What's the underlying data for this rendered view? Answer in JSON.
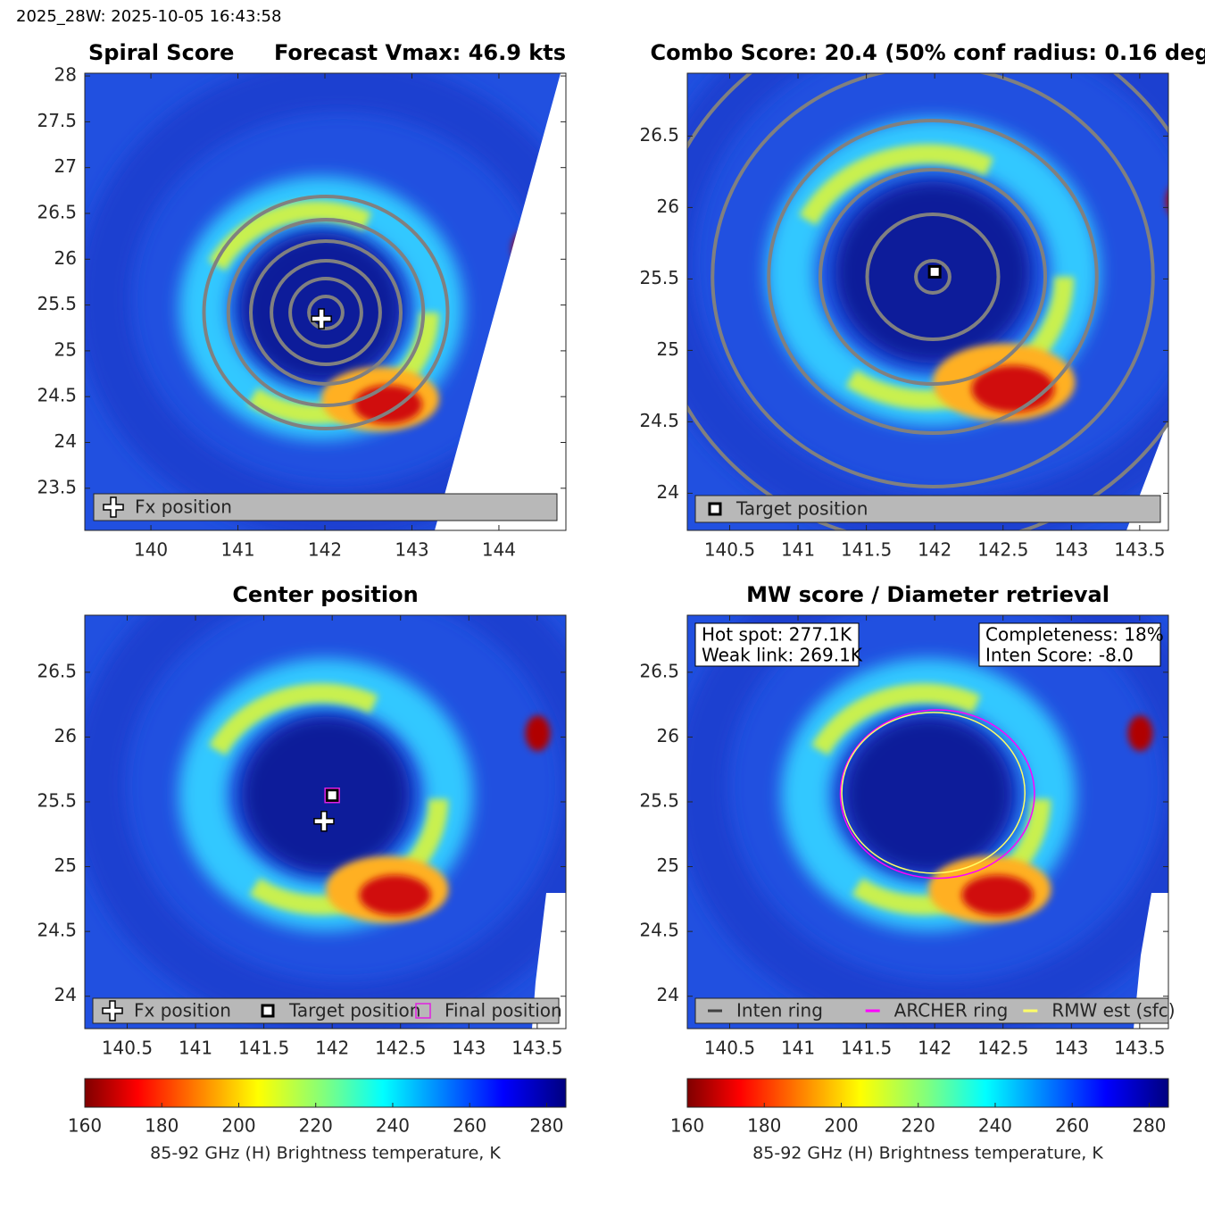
{
  "header": {
    "title": "2025_28W: 2025-10-05 16:43:58"
  },
  "chart_data": [
    {
      "type": "image",
      "title": "Spiral Score",
      "subtitle": "Forecast Vmax: 46.9 kts",
      "xlim": [
        139.24,
        144.77
      ],
      "ylim": [
        23.04,
        28.03
      ],
      "xticks": [
        140,
        141,
        142,
        143,
        144
      ],
      "yticks": [
        23.5,
        24,
        24.5,
        25,
        25.5,
        26,
        26.5,
        27,
        27.5,
        28
      ],
      "markers": [
        {
          "name": "Fx position",
          "symbol": "plus",
          "color": "#ffffff",
          "x": 141.96,
          "y": 25.35
        }
      ]
    },
    {
      "type": "image",
      "title": "Combo Score: 20.4  (50% conf radius: 0.16 deg)",
      "xlim": [
        140.19,
        143.71
      ],
      "ylim": [
        23.74,
        26.94
      ],
      "xticks": [
        140.5,
        141,
        141.5,
        142,
        142.5,
        143,
        143.5
      ],
      "yticks": [
        24,
        24.5,
        25,
        25.5,
        26,
        26.5
      ],
      "markers": [
        {
          "name": "Target position",
          "symbol": "square",
          "color": "#000000",
          "x": 142.0,
          "y": 25.55
        }
      ]
    },
    {
      "type": "image",
      "title": "Center position",
      "xlim": [
        140.19,
        143.71
      ],
      "ylim": [
        23.75,
        26.94
      ],
      "xticks": [
        140.5,
        141,
        141.5,
        142,
        142.5,
        143,
        143.5
      ],
      "yticks": [
        24,
        24.5,
        25,
        25.5,
        26,
        26.5
      ],
      "markers": [
        {
          "name": "Fx position",
          "symbol": "plus",
          "color": "#ffffff",
          "x": 141.94,
          "y": 25.35
        },
        {
          "name": "Target position",
          "symbol": "square",
          "color": "#000000",
          "x": 142.0,
          "y": 25.55
        },
        {
          "name": "Final position",
          "symbol": "open-square",
          "color": "#e020e0",
          "x": 142.0,
          "y": 25.55
        }
      ]
    },
    {
      "type": "image",
      "title": "MW score / Diameter retrieval",
      "xlim": [
        140.19,
        143.71
      ],
      "ylim": [
        23.75,
        26.94
      ],
      "xticks": [
        140.5,
        141,
        141.5,
        142,
        142.5,
        143,
        143.5
      ],
      "yticks": [
        24,
        24.5,
        25,
        25.5,
        26,
        26.5
      ],
      "annotations": [
        [
          "Hot spot: 277.1K",
          "Weak link: 269.1K"
        ],
        [
          "Completeness: 18%",
          "Inten Score: -8.0"
        ]
      ],
      "rings": [
        {
          "name": "Inten ring",
          "color": "#404040",
          "x": null,
          "y": null,
          "rx": null,
          "ry": null
        },
        {
          "name": "ARCHER ring",
          "color": "#ff00ff",
          "x": 142.02,
          "y": 25.56,
          "rx": 0.71,
          "ry": 0.65
        },
        {
          "name": "RMW est (sfc)",
          "color": "#ffff66",
          "x": 141.99,
          "y": 25.57,
          "rx": 0.67,
          "ry": 0.62
        }
      ]
    },
    {
      "type": "colorbar",
      "label": "85-92 GHz (H) Brightness temperature, K",
      "xlim": [
        160,
        285
      ],
      "xticks": [
        160,
        180,
        200,
        220,
        240,
        260,
        280
      ]
    },
    {
      "type": "colorbar",
      "label": "85-92 GHz (H) Brightness temperature, K",
      "xlim": [
        160,
        285
      ],
      "xticks": [
        160,
        180,
        200,
        220,
        240,
        260,
        280
      ]
    }
  ]
}
